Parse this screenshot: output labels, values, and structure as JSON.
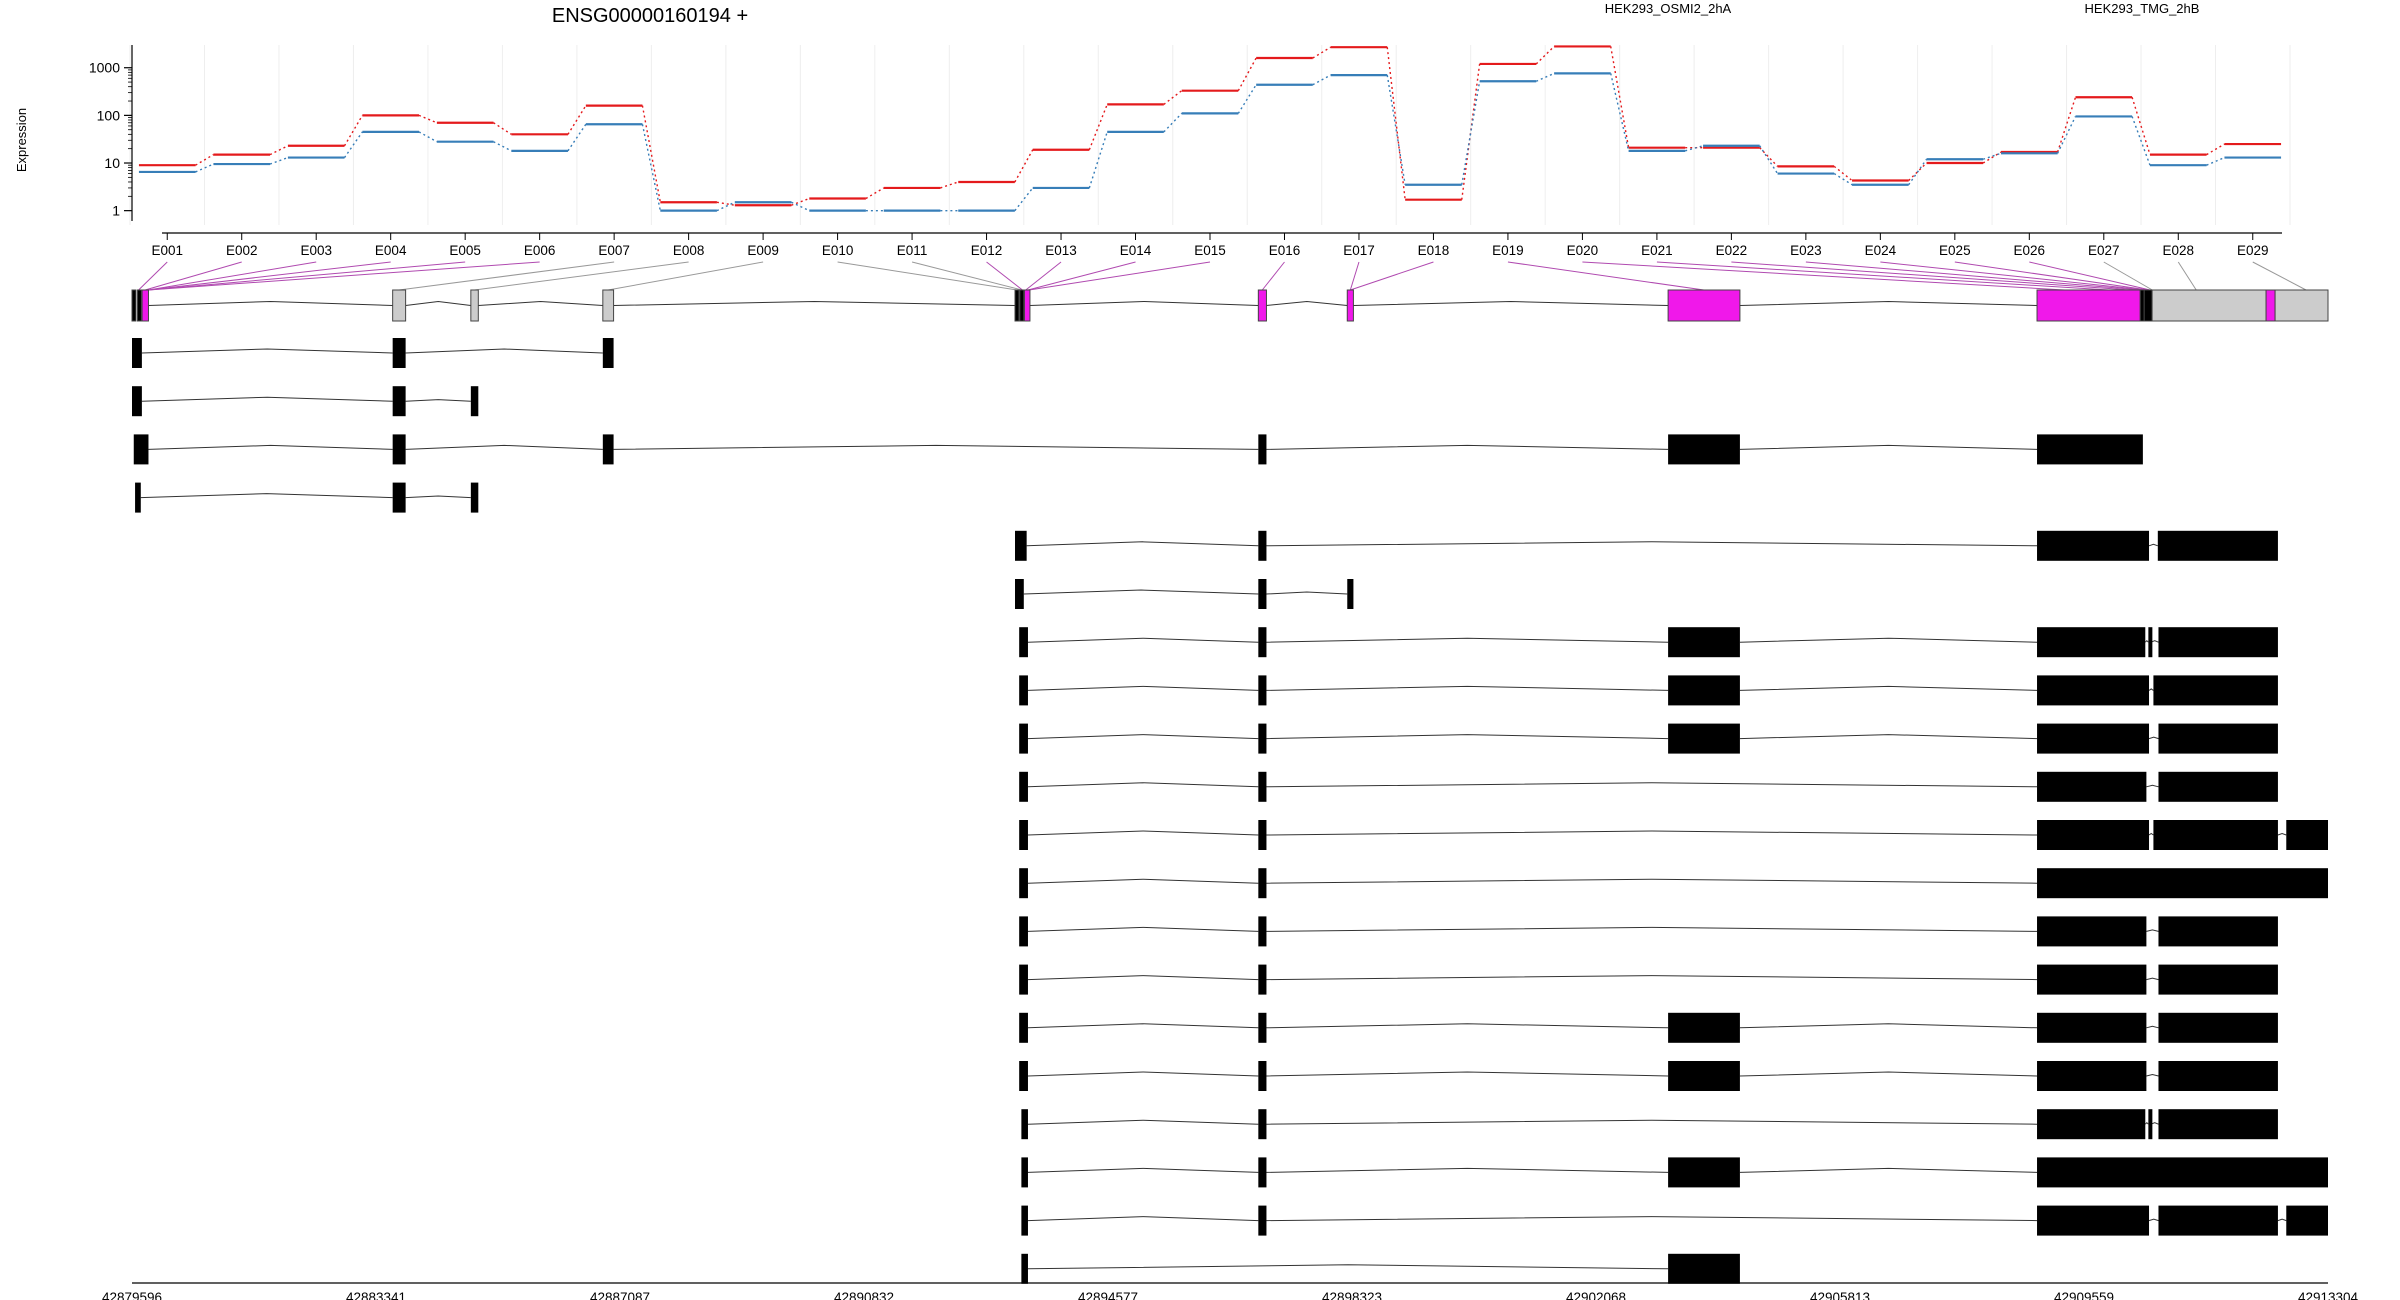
{
  "figure": {
    "title": "ENSG00000160194 +",
    "ylabel": "Expression"
  },
  "colors": {
    "exon_tested": "#f018ea",
    "exon_untested": "#cccccc",
    "transcript": "#000000",
    "connector_tested": "#b04ab0",
    "connector_untested": "#999999"
  },
  "chart_data": {
    "type": "line",
    "yscale": "log",
    "ylim": [
      0.5,
      3000
    ],
    "yticks": [
      1,
      10,
      100,
      1000
    ],
    "categories": [
      "E001",
      "E002",
      "E003",
      "E004",
      "E005",
      "E006",
      "E007",
      "E008",
      "E009",
      "E010",
      "E011",
      "E012",
      "E013",
      "E014",
      "E015",
      "E016",
      "E017",
      "E018",
      "E019",
      "E020",
      "E021",
      "E022",
      "E023",
      "E024",
      "E025",
      "E026",
      "E027",
      "E028",
      "E029"
    ],
    "series": [
      {
        "name": "HEK293_OSMI2_2hA",
        "color": "#e41a1c",
        "values": [
          9,
          15,
          23,
          100,
          70,
          40,
          160,
          1.5,
          1.3,
          1.8,
          3,
          4,
          19,
          170,
          330,
          1600,
          2700,
          1.7,
          1200,
          2800,
          21,
          21,
          8.5,
          4.3,
          10,
          17,
          240,
          15,
          25
        ]
      },
      {
        "name": "HEK293_TMG_2hB",
        "color": "#377eb8",
        "values": [
          6.5,
          9.5,
          13,
          45,
          28,
          18,
          65,
          1,
          1.5,
          1,
          1,
          1,
          3,
          45,
          110,
          440,
          700,
          3.5,
          520,
          760,
          18,
          23,
          6,
          3.5,
          12,
          16,
          95,
          9,
          13
        ]
      }
    ],
    "genomic_axis": {
      "ticks": [
        "42879596",
        "42883341",
        "42887087",
        "42890832",
        "42894577",
        "42898323",
        "42902068",
        "42905813",
        "42909559",
        "42913304"
      ]
    }
  }
}
